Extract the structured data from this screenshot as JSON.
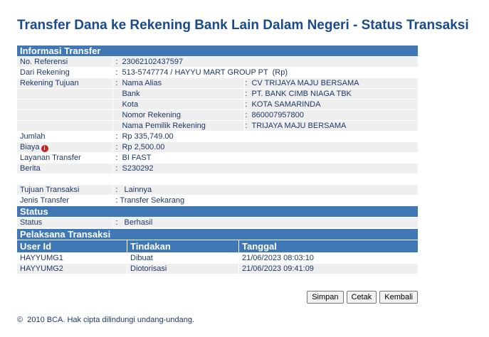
{
  "title": "Transfer Dana ke Rekening Bank Lain Dalam Negeri - Status Transaksi",
  "info": {
    "header": "Informasi Transfer",
    "no_referensi": {
      "label": "No. Referensi",
      "value": "23062102437597"
    },
    "dari_rekening": {
      "label": "Dari Rekening",
      "value": "513-5747774 / HAYYU MART GROUP PT  (Rp)"
    },
    "rekening_tujuan": {
      "label": "Rekening Tujuan",
      "items": [
        {
          "label": "Nama Alias",
          "value": "CV TRIJAYA MAJU BERSAMA"
        },
        {
          "label": "Bank",
          "value": "PT. BANK CIMB NIAGA TBK"
        },
        {
          "label": "Kota",
          "value": "KOTA SAMARINDA"
        },
        {
          "label": "Nomor Rekening",
          "value": "860007957800"
        },
        {
          "label": "Nama Pemilik Rekening",
          "value": "TRIJAYA MAJU BERSAMA"
        }
      ]
    },
    "jumlah": {
      "label": "Jumlah",
      "value": "Rp 335,749.00"
    },
    "biaya": {
      "label": "Biaya",
      "value": "Rp 2,500.00"
    },
    "layanan": {
      "label": "Layanan Transfer",
      "value": "BI FAST"
    },
    "berita": {
      "label": "Berita",
      "value": "S230292"
    },
    "tujuan": {
      "label": "Tujuan Transaksi",
      "value": "Lainnya"
    },
    "jenis": {
      "label": "Jenis Transfer",
      "value": "Transfer Sekarang"
    }
  },
  "status": {
    "header": "Status",
    "label": "Status",
    "value": "Berhasil"
  },
  "pelaksana": {
    "header": "Pelaksana Transaksi",
    "columns": [
      "User Id",
      "Tindakan",
      "Tanggal"
    ],
    "rows": [
      [
        "HAYYUMG1",
        "Dibuat",
        "21/06/2023 08:03:10"
      ],
      [
        "HAYYUMG2",
        "Diotorisasi",
        "21/06/2023 09:41:09"
      ]
    ]
  },
  "buttons": {
    "simpan": "Simpan",
    "cetak": "Cetak",
    "kembali": "Kembali"
  },
  "colon": ":",
  "footer": "©  2010 BCA. Hak cipta dilindungi undang-undang."
}
